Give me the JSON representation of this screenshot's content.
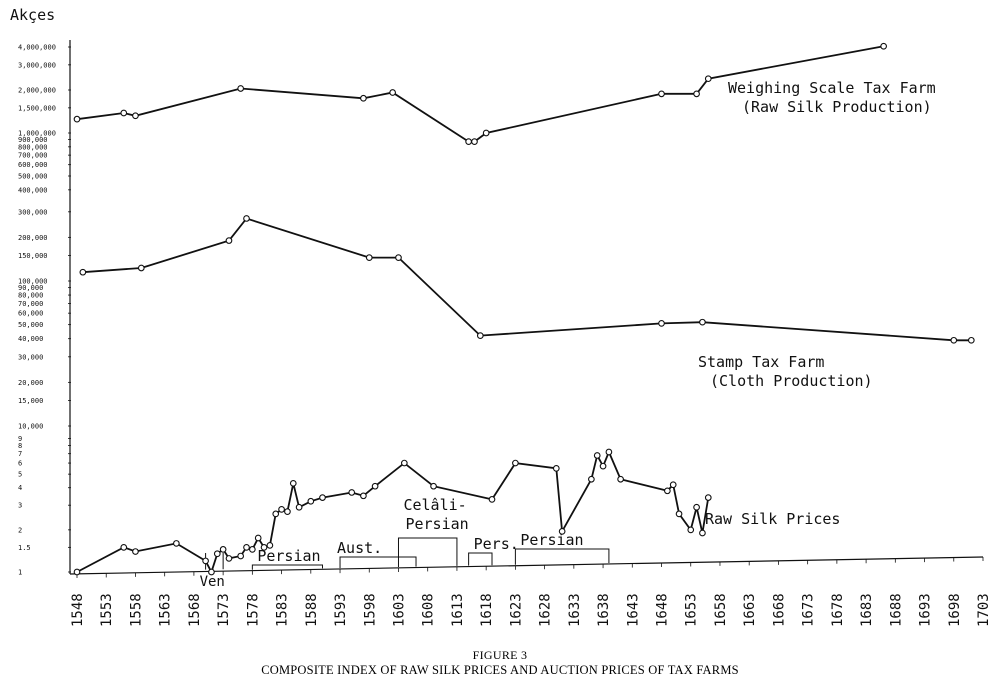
{
  "chart_data": {
    "type": "line",
    "ylabel": "Akçes",
    "y_scale": "log",
    "title_number": "FIGURE 3",
    "caption": "COMPOSITE INDEX OF RAW SILK PRICES AND AUCTION PRICES OF TAX FARMS",
    "x_ticks": [
      "1548",
      "1553",
      "1558",
      "1563",
      "1568",
      "1573",
      "1578",
      "1583",
      "1588",
      "1593",
      "1598",
      "1603",
      "1608",
      "1613",
      "1618",
      "1623",
      "1628",
      "1633",
      "1638",
      "1643",
      "1648",
      "1653",
      "1658",
      "1663",
      "1668",
      "1673",
      "1678",
      "1683",
      "1688",
      "1693",
      "1698",
      "1703"
    ],
    "weighing_ticks": [
      "4,000,000",
      "3,000,000",
      "2,000,000",
      "1,500,000",
      "1,000,000",
      "900,000",
      "800,000",
      "700,000",
      "600,000",
      "500,000",
      "400,000"
    ],
    "stamp_ticks": [
      "300,000",
      "200,000",
      "150,000",
      "100,000",
      "90,000",
      "80,000",
      "70,000",
      "60,000",
      "50,000",
      "40,000",
      "30,000",
      "20,000",
      "15,000",
      "10,000"
    ],
    "silk_ticks": [
      "9",
      "8",
      "7",
      "6",
      "5",
      "4",
      "3",
      "2",
      "1.5",
      "1"
    ],
    "series": [
      {
        "name": "Weighing Scale Tax Farm",
        "label": [
          "Weighing Scale Tax Farm",
          "(Raw Silk Production)"
        ],
        "points": [
          [
            1548,
            1250000
          ],
          [
            1556,
            1380000
          ],
          [
            1558,
            1320000
          ],
          [
            1576,
            2050000
          ],
          [
            1597,
            1750000
          ],
          [
            1602,
            1920000
          ],
          [
            1615,
            870000
          ],
          [
            1616,
            870000
          ],
          [
            1618,
            1000000
          ],
          [
            1648,
            1880000
          ],
          [
            1654,
            1880000
          ],
          [
            1656,
            2400000
          ],
          [
            1686,
            4050000
          ]
        ]
      },
      {
        "name": "Stamp Tax Farm",
        "label": [
          "Stamp Tax Farm",
          "(Cloth Production)"
        ],
        "points": [
          [
            1549,
            115000
          ],
          [
            1559,
            123000
          ],
          [
            1574,
            190000
          ],
          [
            1577,
            270000
          ],
          [
            1598,
            145000
          ],
          [
            1603,
            145000
          ],
          [
            1617,
            42000
          ],
          [
            1648,
            51000
          ],
          [
            1655,
            52000
          ],
          [
            1698,
            39000
          ],
          [
            1701,
            39000
          ]
        ]
      },
      {
        "name": "Raw Silk Prices",
        "label": [
          "Raw Silk Prices"
        ],
        "points": [
          [
            1548,
            1.0
          ],
          [
            1556,
            1.5
          ],
          [
            1558,
            1.4
          ],
          [
            1565,
            1.6
          ],
          [
            1570,
            1.2
          ],
          [
            1571,
            1.0
          ],
          [
            1572,
            1.35
          ],
          [
            1573,
            1.45
          ],
          [
            1574,
            1.25
          ],
          [
            1576,
            1.3
          ],
          [
            1577,
            1.5
          ],
          [
            1578,
            1.45
          ],
          [
            1579,
            1.75
          ],
          [
            1580,
            1.5
          ],
          [
            1581,
            1.55
          ],
          [
            1582,
            2.6
          ],
          [
            1583,
            2.8
          ],
          [
            1584,
            2.7
          ],
          [
            1585,
            4.3
          ],
          [
            1586,
            2.9
          ],
          [
            1588,
            3.2
          ],
          [
            1590,
            3.4
          ],
          [
            1595,
            3.7
          ],
          [
            1597,
            3.5
          ],
          [
            1599,
            4.1
          ],
          [
            1604,
            6.0
          ],
          [
            1609,
            4.1
          ],
          [
            1619,
            3.3
          ],
          [
            1623,
            6.0
          ],
          [
            1630,
            5.5
          ],
          [
            1631,
            1.95
          ],
          [
            1636,
            4.6
          ],
          [
            1637,
            6.8
          ],
          [
            1638,
            5.7
          ],
          [
            1639,
            7.2
          ],
          [
            1641,
            4.6
          ],
          [
            1649,
            3.8
          ],
          [
            1650,
            4.2
          ],
          [
            1651,
            2.6
          ],
          [
            1653,
            2.0
          ],
          [
            1654,
            2.9
          ],
          [
            1655,
            1.9
          ],
          [
            1656,
            3.4
          ]
        ]
      }
    ],
    "periods": [
      {
        "label": "Ven",
        "from": 1570,
        "to": 1573
      },
      {
        "label": "Persian",
        "from": 1578,
        "to": 1590
      },
      {
        "label": "Aust.",
        "from": 1593,
        "to": 1606
      },
      {
        "label": "Celâli-",
        "label2": "Persian",
        "from": 1603,
        "to": 1613
      },
      {
        "label": "Pers.",
        "from": 1615,
        "to": 1619
      },
      {
        "label": "Persian",
        "from": 1623,
        "to": 1639
      }
    ]
  }
}
